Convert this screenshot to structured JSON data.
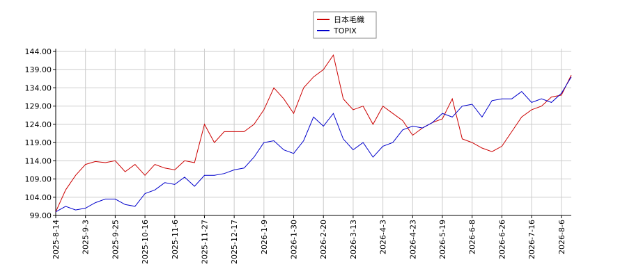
{
  "chart_data": {
    "type": "line",
    "categories": [
      "2025-8-14",
      null,
      null,
      "2025-9-3",
      null,
      null,
      "2025-9-25",
      null,
      null,
      "2025-10-16",
      null,
      null,
      "2025-11-6",
      null,
      null,
      "2025-11-27",
      null,
      null,
      "2025-12-17",
      null,
      null,
      "2026-1-9",
      null,
      null,
      "2026-1-30",
      null,
      null,
      "2026-2-20",
      null,
      null,
      "2026-3-13",
      null,
      null,
      "2026-4-3",
      null,
      null,
      "2026-4-23",
      null,
      null,
      "2026-5-19",
      null,
      null,
      "2026-6-8",
      null,
      null,
      "2026-6-26",
      null,
      null,
      "2026-7-16",
      null,
      null,
      "2026-8-6",
      null
    ],
    "series": [
      {
        "name": "日本毛織",
        "color": "#cc0000",
        "values": [
          100,
          106,
          110,
          113,
          113.8,
          113.5,
          114,
          111,
          113,
          110,
          113,
          112,
          111.5,
          114,
          113.5,
          124,
          119,
          122,
          122,
          122,
          124,
          128,
          134,
          131,
          127,
          134,
          137,
          139,
          143,
          131,
          128,
          129,
          124,
          129,
          127,
          125,
          121,
          123,
          124.5,
          125.5,
          131,
          120,
          119,
          117.5,
          116.5,
          118,
          122,
          126,
          128,
          129,
          131.5,
          132,
          137.5
        ]
      },
      {
        "name": "TOPIX",
        "color": "#0000cc",
        "values": [
          100,
          101.5,
          100.5,
          101,
          102.5,
          103.5,
          103.5,
          102,
          101.5,
          105,
          106,
          108,
          107.5,
          109.5,
          107,
          110,
          110,
          110.5,
          111.5,
          112,
          115,
          119,
          119.5,
          117,
          116,
          119.5,
          126,
          123.5,
          127,
          120,
          117,
          119,
          115,
          118,
          119,
          122.5,
          123.5,
          123,
          124.5,
          127,
          126,
          129,
          129.5,
          126,
          130.5,
          131,
          131,
          133,
          130,
          131,
          130,
          132.5,
          137
        ]
      }
    ],
    "ylim": [
      99,
      144
    ],
    "yticks": [
      {
        "value": 99,
        "label": "99.00"
      },
      {
        "value": 104,
        "label": "104.00"
      },
      {
        "value": 109,
        "label": "109.00"
      },
      {
        "value": 114,
        "label": "114.00"
      },
      {
        "value": 119,
        "label": "119.00"
      },
      {
        "value": 124,
        "label": "124.00"
      },
      {
        "value": 129,
        "label": "129.00"
      },
      {
        "value": 134,
        "label": "134.00"
      },
      {
        "value": 139,
        "label": "139.00"
      },
      {
        "value": 144,
        "label": "144.00"
      }
    ],
    "grid": true,
    "legend": "top"
  }
}
